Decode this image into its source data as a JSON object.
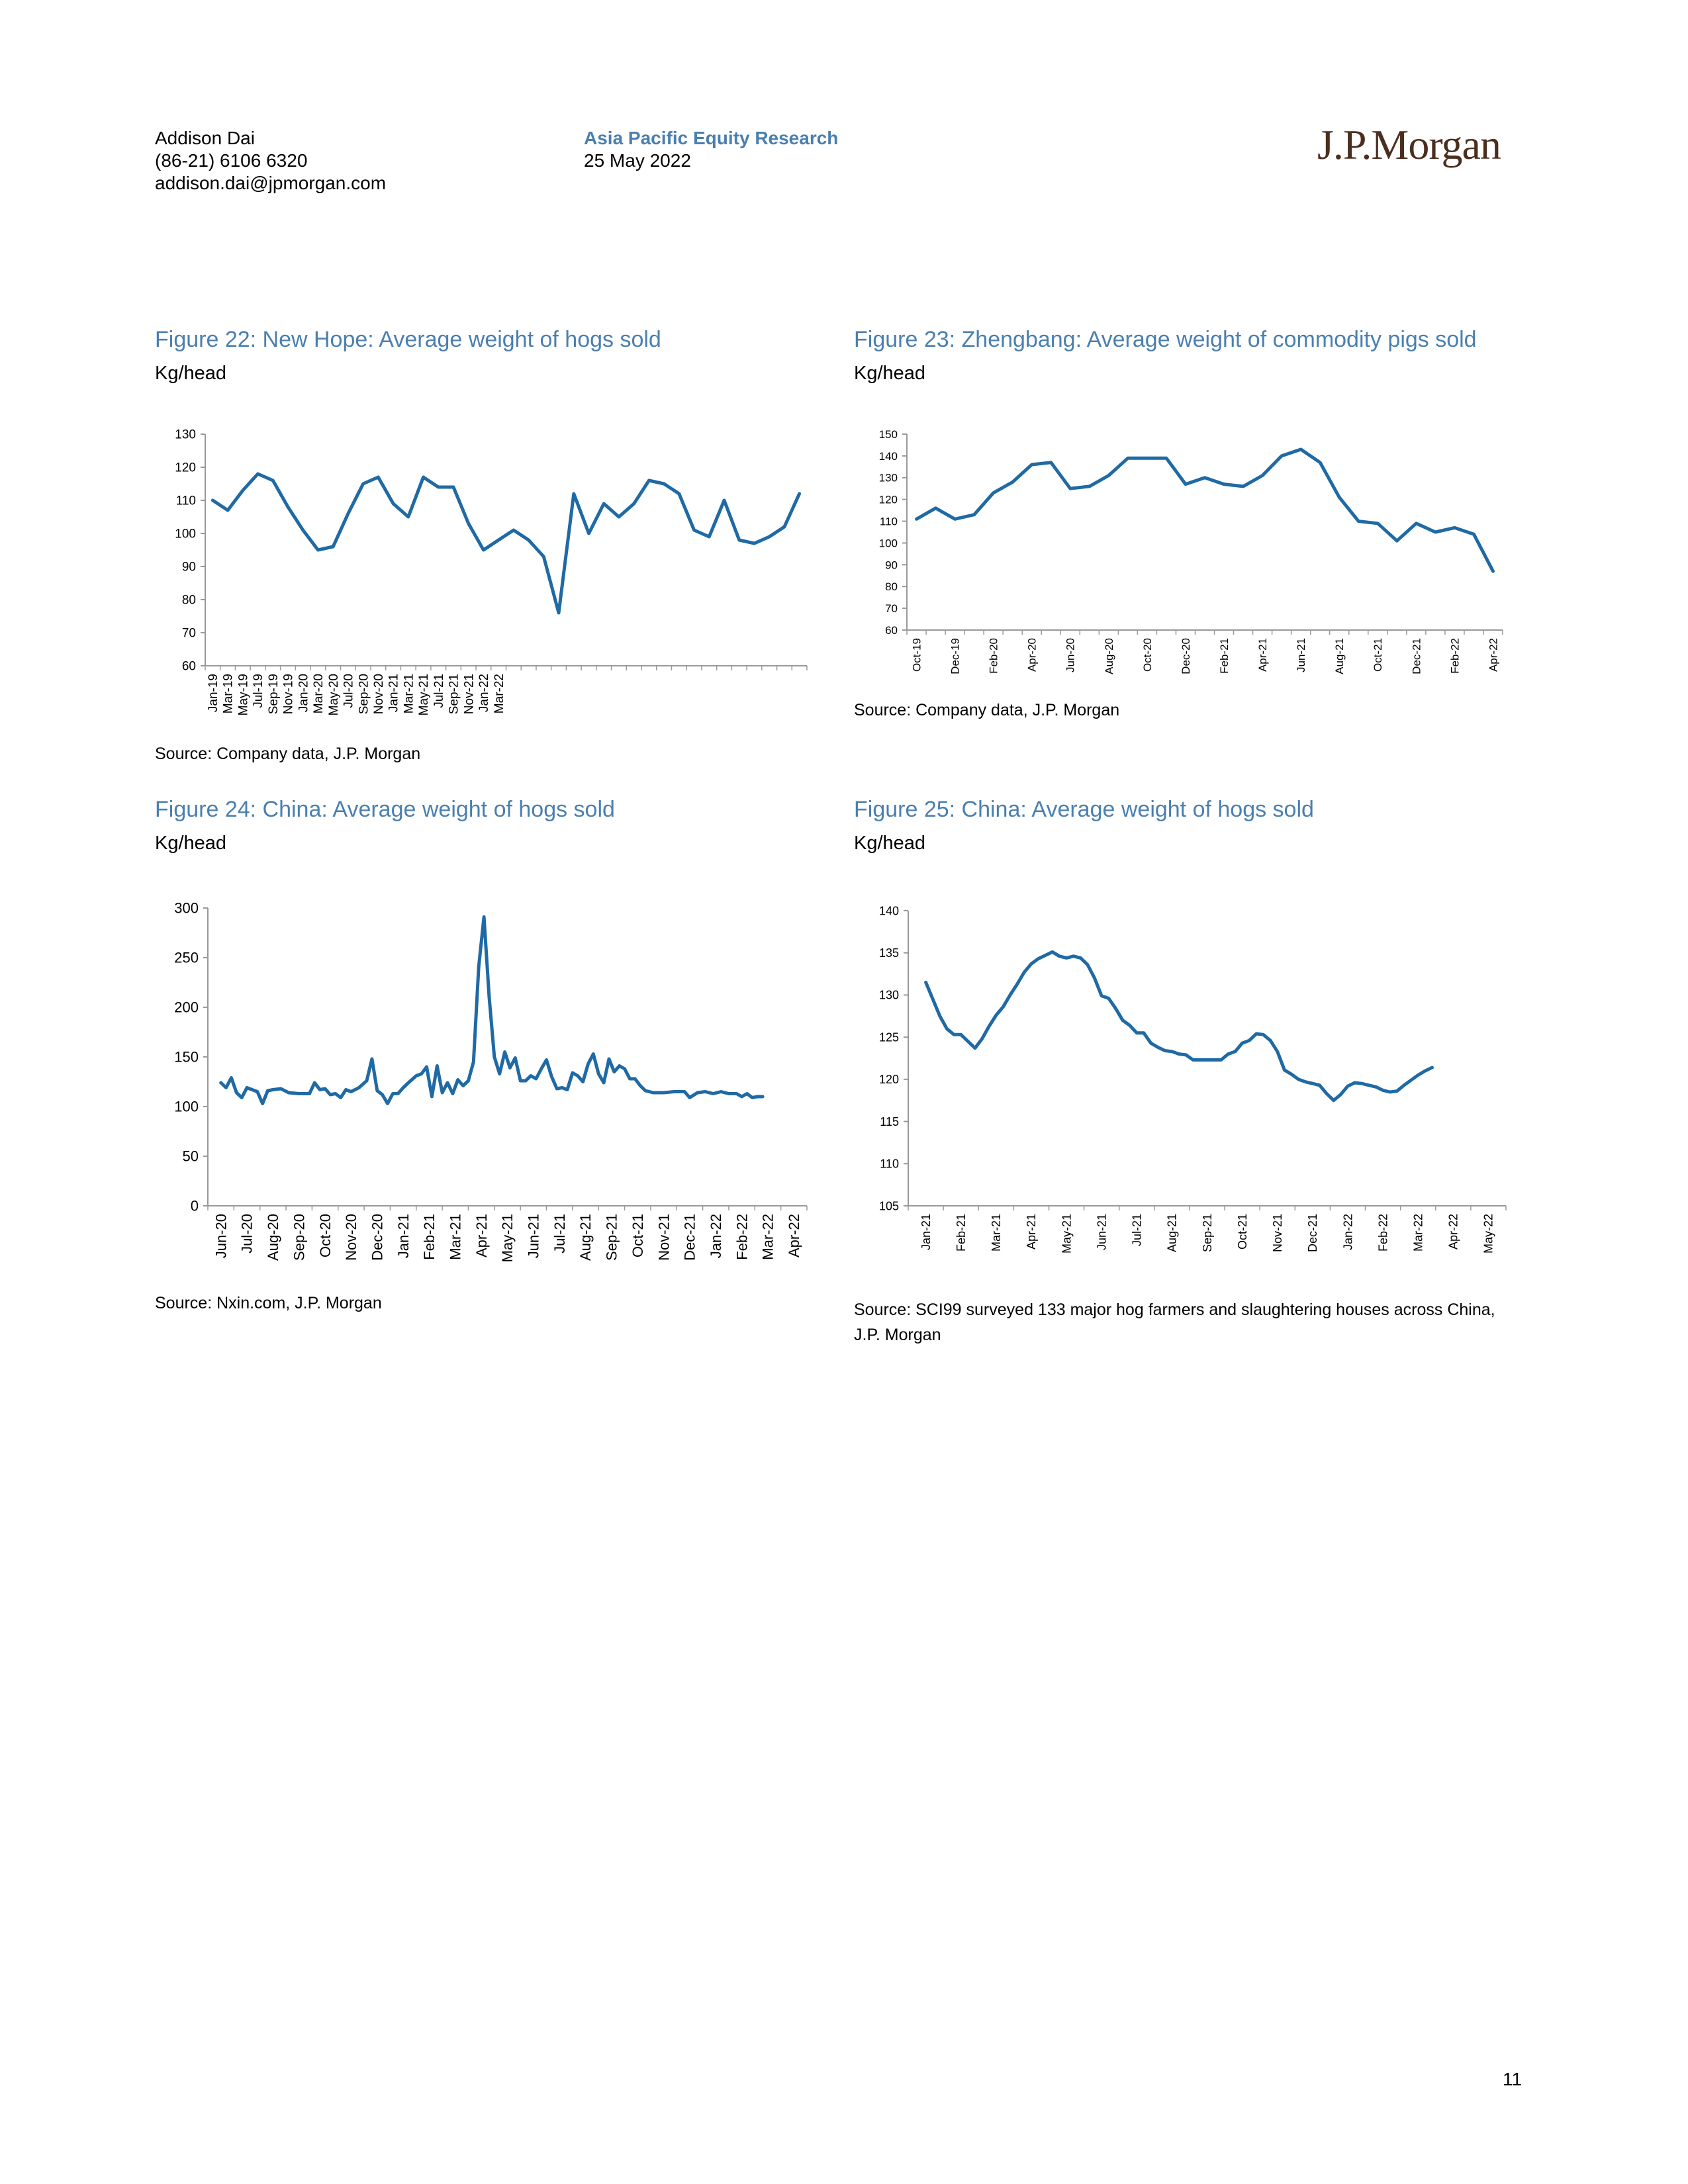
{
  "header": {
    "author": "Addison Dai",
    "phone": "(86-21) 6106 6320",
    "email": "addison.dai@jpmorgan.com",
    "series": "Asia Pacific Equity Research",
    "date": "25 May 2022",
    "logo": "J.P.Morgan"
  },
  "figures": [
    {
      "title": "Figure 22: New Hope: Average weight of hogs sold",
      "unit": "Kg/head",
      "source": "Source: Company data, J.P. Morgan"
    },
    {
      "title": "Figure 23: Zhengbang: Average weight of commodity pigs sold",
      "unit": "Kg/head",
      "source": "Source: Company data, J.P. Morgan"
    },
    {
      "title": "Figure 24: China: Average weight of hogs sold",
      "unit": "Kg/head",
      "source": "Source: Nxin.com, J.P. Morgan"
    },
    {
      "title": "Figure 25: China: Average weight of hogs sold",
      "unit": "Kg/head",
      "source": "Source: SCI99 surveyed 133 major hog farmers and slaughtering houses across China, J.P. Morgan"
    }
  ],
  "page_number": "11",
  "chart_data": [
    {
      "type": "line",
      "line_color": "#1f6aa5",
      "ylim": [
        60,
        130
      ],
      "yticks": [
        60,
        70,
        80,
        90,
        100,
        110,
        120,
        130
      ],
      "xtick_labels": [
        "Jan-19",
        "Mar-19",
        "May-19",
        "Jul-19",
        "Sep-19",
        "Nov-19",
        "Jan-20",
        "Mar-20",
        "May-20",
        "Jul-20",
        "Sep-20",
        "Nov-20",
        "Jan-21",
        "Mar-21",
        "May-21",
        "Jul-21",
        "Sep-21",
        "Nov-21",
        "Jan-22",
        "Mar-22"
      ],
      "x_count": 40,
      "values": [
        110,
        107,
        113,
        118,
        116,
        108,
        101,
        95,
        96,
        106,
        115,
        117,
        109,
        105,
        117,
        114,
        114,
        103,
        95,
        98,
        101,
        98,
        93,
        76,
        112,
        100,
        109,
        105,
        109,
        116,
        115,
        112,
        101,
        99,
        110,
        98,
        97,
        99,
        102,
        112
      ]
    },
    {
      "type": "line",
      "line_color": "#1f6aa5",
      "ylim": [
        60,
        150
      ],
      "yticks": [
        60,
        70,
        80,
        90,
        100,
        110,
        120,
        130,
        140,
        150
      ],
      "xtick_labels": [
        "Oct-19",
        "Dec-19",
        "Feb-20",
        "Apr-20",
        "Jun-20",
        "Aug-20",
        "Oct-20",
        "Dec-20",
        "Feb-21",
        "Apr-21",
        "Jun-21",
        "Aug-21",
        "Oct-21",
        "Dec-21",
        "Feb-22",
        "Apr-22"
      ],
      "x_count": 31,
      "values": [
        111,
        116,
        111,
        113,
        123,
        128,
        136,
        137,
        125,
        126,
        131,
        139,
        139,
        139,
        127,
        130,
        127,
        126,
        131,
        140,
        143,
        137,
        121,
        110,
        109,
        101,
        109,
        105,
        107,
        104,
        87
      ]
    },
    {
      "type": "line",
      "line_color": "#1f6aa5",
      "ylim": [
        0,
        300
      ],
      "yticks": [
        0,
        50,
        100,
        150,
        200,
        250,
        300
      ],
      "xtick_labels": [
        "Jun-20",
        "Jul-20",
        "Aug-20",
        "Sep-20",
        "Oct-20",
        "Nov-20",
        "Dec-20",
        "Jan-21",
        "Feb-21",
        "Mar-21",
        "Apr-21",
        "May-21",
        "Jun-21",
        "Jul-21",
        "Aug-21",
        "Sep-21",
        "Oct-21",
        "Nov-21",
        "Dec-21",
        "Jan-22",
        "Feb-22",
        "Mar-22",
        "Apr-22"
      ],
      "x_count": 23,
      "points": [
        [
          0.0,
          124
        ],
        [
          0.2,
          119
        ],
        [
          0.4,
          129
        ],
        [
          0.6,
          114
        ],
        [
          0.8,
          109
        ],
        [
          1.0,
          119
        ],
        [
          1.2,
          117
        ],
        [
          1.4,
          115
        ],
        [
          1.6,
          103
        ],
        [
          1.8,
          116
        ],
        [
          2.0,
          117
        ],
        [
          2.3,
          118
        ],
        [
          2.6,
          114
        ],
        [
          3.0,
          113
        ],
        [
          3.4,
          113
        ],
        [
          3.6,
          124
        ],
        [
          3.8,
          117
        ],
        [
          4.0,
          118
        ],
        [
          4.2,
          112
        ],
        [
          4.4,
          113
        ],
        [
          4.6,
          109
        ],
        [
          4.8,
          117
        ],
        [
          5.0,
          115
        ],
        [
          5.3,
          119
        ],
        [
          5.6,
          126
        ],
        [
          5.8,
          148
        ],
        [
          6.0,
          116
        ],
        [
          6.2,
          112
        ],
        [
          6.4,
          103
        ],
        [
          6.6,
          113
        ],
        [
          6.8,
          113
        ],
        [
          7.0,
          119
        ],
        [
          7.2,
          124
        ],
        [
          7.5,
          131
        ],
        [
          7.7,
          133
        ],
        [
          7.9,
          140
        ],
        [
          8.1,
          110
        ],
        [
          8.3,
          141
        ],
        [
          8.5,
          114
        ],
        [
          8.7,
          124
        ],
        [
          8.9,
          113
        ],
        [
          9.1,
          127
        ],
        [
          9.3,
          121
        ],
        [
          9.5,
          126
        ],
        [
          9.7,
          145
        ],
        [
          9.9,
          241
        ],
        [
          10.1,
          291
        ],
        [
          10.3,
          210
        ],
        [
          10.5,
          150
        ],
        [
          10.7,
          133
        ],
        [
          10.9,
          155
        ],
        [
          11.1,
          139
        ],
        [
          11.3,
          149
        ],
        [
          11.5,
          126
        ],
        [
          11.7,
          126
        ],
        [
          11.9,
          131
        ],
        [
          12.1,
          128
        ],
        [
          12.3,
          138
        ],
        [
          12.5,
          147
        ],
        [
          12.7,
          130
        ],
        [
          12.9,
          118
        ],
        [
          13.1,
          119
        ],
        [
          13.3,
          117
        ],
        [
          13.5,
          134
        ],
        [
          13.7,
          131
        ],
        [
          13.9,
          125
        ],
        [
          14.1,
          143
        ],
        [
          14.3,
          153
        ],
        [
          14.5,
          133
        ],
        [
          14.7,
          124
        ],
        [
          14.9,
          148
        ],
        [
          15.1,
          135
        ],
        [
          15.3,
          141
        ],
        [
          15.5,
          138
        ],
        [
          15.7,
          128
        ],
        [
          15.9,
          128
        ],
        [
          16.1,
          121
        ],
        [
          16.3,
          116
        ],
        [
          16.6,
          114
        ],
        [
          17.0,
          114
        ],
        [
          17.4,
          115
        ],
        [
          17.8,
          115
        ],
        [
          18.0,
          109
        ],
        [
          18.3,
          114
        ],
        [
          18.6,
          115
        ],
        [
          18.9,
          113
        ],
        [
          19.2,
          115
        ],
        [
          19.5,
          113
        ],
        [
          19.8,
          113
        ],
        [
          20.0,
          110
        ],
        [
          20.2,
          113
        ],
        [
          20.4,
          109
        ],
        [
          20.6,
          110
        ],
        [
          20.8,
          110
        ]
      ]
    },
    {
      "type": "line",
      "line_color": "#1f6aa5",
      "ylim": [
        105,
        140
      ],
      "yticks": [
        105,
        110,
        115,
        120,
        125,
        130,
        135,
        140
      ],
      "xtick_labels": [
        "Jan-21",
        "Feb-21",
        "Mar-21",
        "Apr-21",
        "May-21",
        "Jun-21",
        "Jul-21",
        "Aug-21",
        "Sep-21",
        "Oct-21",
        "Nov-21",
        "Dec-21",
        "Jan-22",
        "Feb-22",
        "Mar-22",
        "Apr-22",
        "May-22"
      ],
      "x_count": 17,
      "points": [
        [
          0.0,
          131.5
        ],
        [
          0.2,
          129.5
        ],
        [
          0.4,
          127.5
        ],
        [
          0.6,
          126.0
        ],
        [
          0.8,
          125.3
        ],
        [
          1.0,
          125.3
        ],
        [
          1.2,
          124.5
        ],
        [
          1.4,
          123.7
        ],
        [
          1.6,
          124.8
        ],
        [
          1.8,
          126.3
        ],
        [
          2.0,
          127.6
        ],
        [
          2.2,
          128.6
        ],
        [
          2.4,
          130.0
        ],
        [
          2.6,
          131.3
        ],
        [
          2.8,
          132.7
        ],
        [
          3.0,
          133.7
        ],
        [
          3.2,
          134.3
        ],
        [
          3.4,
          134.7
        ],
        [
          3.6,
          135.1
        ],
        [
          3.8,
          134.6
        ],
        [
          4.0,
          134.4
        ],
        [
          4.2,
          134.6
        ],
        [
          4.4,
          134.4
        ],
        [
          4.6,
          133.6
        ],
        [
          4.8,
          132.0
        ],
        [
          5.0,
          129.9
        ],
        [
          5.2,
          129.6
        ],
        [
          5.4,
          128.4
        ],
        [
          5.6,
          127.0
        ],
        [
          5.8,
          126.4
        ],
        [
          6.0,
          125.5
        ],
        [
          6.2,
          125.5
        ],
        [
          6.4,
          124.3
        ],
        [
          6.6,
          123.8
        ],
        [
          6.8,
          123.4
        ],
        [
          7.0,
          123.3
        ],
        [
          7.2,
          123.0
        ],
        [
          7.4,
          122.9
        ],
        [
          7.6,
          122.3
        ],
        [
          8.0,
          122.3
        ],
        [
          8.4,
          122.3
        ],
        [
          8.6,
          123.0
        ],
        [
          8.8,
          123.3
        ],
        [
          9.0,
          124.3
        ],
        [
          9.2,
          124.6
        ],
        [
          9.4,
          125.4
        ],
        [
          9.6,
          125.3
        ],
        [
          9.8,
          124.6
        ],
        [
          10.0,
          123.3
        ],
        [
          10.2,
          121.1
        ],
        [
          10.4,
          120.6
        ],
        [
          10.6,
          120.0
        ],
        [
          10.8,
          119.7
        ],
        [
          11.0,
          119.5
        ],
        [
          11.2,
          119.3
        ],
        [
          11.4,
          118.3
        ],
        [
          11.6,
          117.5
        ],
        [
          11.8,
          118.2
        ],
        [
          12.0,
          119.2
        ],
        [
          12.2,
          119.6
        ],
        [
          12.4,
          119.5
        ],
        [
          12.6,
          119.3
        ],
        [
          12.8,
          119.1
        ],
        [
          13.0,
          118.7
        ],
        [
          13.2,
          118.5
        ],
        [
          13.4,
          118.6
        ],
        [
          13.6,
          119.3
        ],
        [
          13.8,
          119.9
        ],
        [
          14.0,
          120.5
        ],
        [
          14.2,
          121.0
        ],
        [
          14.4,
          121.4
        ]
      ]
    }
  ]
}
